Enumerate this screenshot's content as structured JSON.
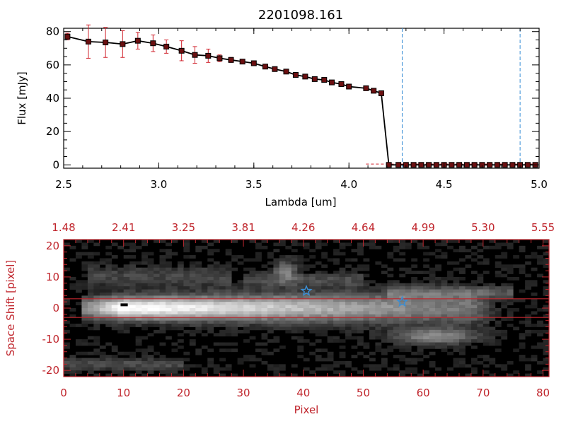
{
  "chart_data": [
    {
      "type": "line",
      "title": "2201098.161",
      "xlabel": "Lambda [um]",
      "ylabel": "Flux [mJy]",
      "xlim": [
        2.5,
        5.0
      ],
      "ylim": [
        -2,
        82
      ],
      "xticks": [
        "2.5",
        "3.0",
        "3.5",
        "4.0",
        "4.5",
        "5.0"
      ],
      "yticks": [
        "0",
        "20",
        "40",
        "60",
        "80"
      ],
      "series": [
        {
          "x": [
            2.52,
            2.63,
            2.72,
            2.81,
            2.89,
            2.97,
            3.04,
            3.12,
            3.19,
            3.26,
            3.32,
            3.38,
            3.44,
            3.5,
            3.56,
            3.61,
            3.67,
            3.72,
            3.77,
            3.82,
            3.87,
            3.91,
            3.96,
            4.0,
            4.09,
            4.13,
            4.17,
            4.21,
            4.26,
            4.3,
            4.34,
            4.38,
            4.42,
            4.46,
            4.5,
            4.54,
            4.58,
            4.62,
            4.66,
            4.7,
            4.74,
            4.78,
            4.82,
            4.86,
            4.9,
            4.94,
            4.98
          ],
          "values": [
            77,
            74,
            73.5,
            72.5,
            74.5,
            73,
            71,
            68.5,
            66,
            65.5,
            64,
            63,
            62,
            61,
            59,
            57.5,
            56,
            54,
            53,
            51.5,
            51,
            49.5,
            48.5,
            47,
            46,
            44.5,
            43,
            0,
            0,
            0,
            0,
            0,
            0,
            0,
            0,
            0,
            0,
            0,
            0,
            0,
            0,
            0,
            0,
            0,
            0,
            0,
            0
          ],
          "errors": [
            2,
            10,
            9,
            8,
            5,
            5,
            4,
            6,
            5,
            4,
            2,
            1.5,
            1,
            1,
            1,
            1,
            1,
            1,
            1,
            1,
            1,
            1,
            1,
            1,
            1,
            1,
            1,
            0,
            0,
            0,
            0,
            0,
            0,
            0,
            0,
            0,
            0,
            0,
            0,
            0,
            0,
            0,
            0,
            0,
            0,
            0,
            0
          ]
        }
      ],
      "vlines": [
        4.28,
        4.9
      ],
      "hline": 0.5,
      "colors": {
        "line": "#000000",
        "marker": "#6b0f10",
        "error": "#d0202a",
        "vline": "#3a8fd6",
        "hline": "#d0202a"
      }
    },
    {
      "type": "heatmap",
      "xlabel": "Pixel",
      "ylabel": "Space Shift [pixel]",
      "xlim": [
        0,
        81
      ],
      "ylim": [
        -22,
        22
      ],
      "xticks": [
        "0",
        "10",
        "20",
        "30",
        "40",
        "50",
        "60",
        "70",
        "80"
      ],
      "yticks": [
        "-20",
        "-10",
        "0",
        "10",
        "20"
      ],
      "top_xticks": [
        "1.48",
        "2.41",
        "3.25",
        "3.81",
        "4.26",
        "4.64",
        "4.99",
        "5.30",
        "5.55"
      ],
      "aperture": [
        -3,
        3
      ],
      "stars": [
        {
          "x": 40.5,
          "y": 5.5
        },
        {
          "x": 56.5,
          "y": 2
        }
      ],
      "colors": {
        "axis": "#c0262d",
        "aperture": "#c0262d",
        "star": "#3a8fd6"
      }
    }
  ]
}
